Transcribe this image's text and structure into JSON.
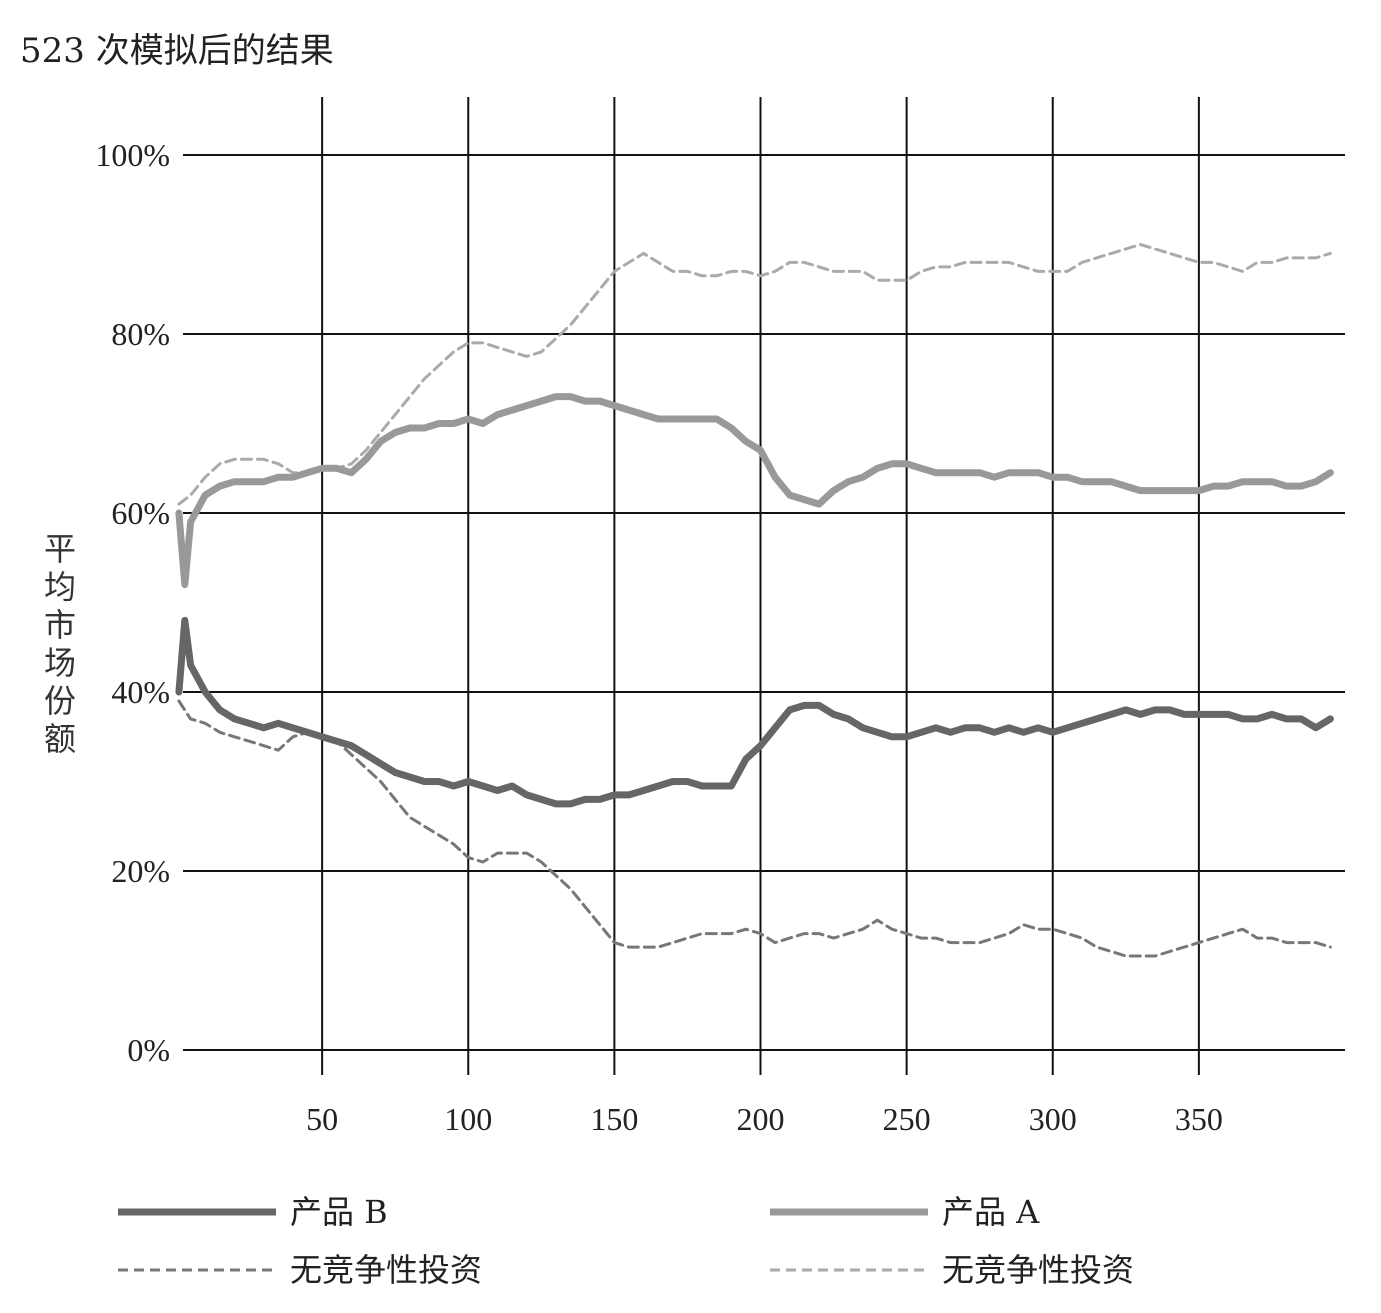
{
  "chart_data": {
    "type": "line",
    "title": "523 次模拟后的结果",
    "xlabel": "",
    "ylabel": "平均市场份额",
    "xlim": [
      0,
      400
    ],
    "ylim": [
      0,
      100
    ],
    "x_ticks": [
      50,
      100,
      150,
      200,
      250,
      300,
      350
    ],
    "x_tick_labels": [
      "50",
      "100",
      "150",
      "200",
      "250",
      "300",
      "350"
    ],
    "y_ticks": [
      0,
      20,
      40,
      60,
      80,
      100
    ],
    "y_tick_labels": [
      "0%",
      "20%",
      "40%",
      "60%",
      "80%",
      "100%"
    ],
    "grid": true,
    "legend_position": "bottom",
    "legend": [
      {
        "label": "产品 B",
        "series": 0
      },
      {
        "label": "产品 A",
        "series": 1
      },
      {
        "label": "无竞争性投资",
        "series": 2
      },
      {
        "label": "无竞争性投资",
        "series": 3
      }
    ],
    "series": [
      {
        "name": "产品 B",
        "color": "#666666",
        "style": "solid-thick",
        "x": [
          1,
          3,
          5,
          10,
          15,
          20,
          25,
          30,
          35,
          40,
          45,
          50,
          55,
          60,
          65,
          70,
          75,
          80,
          85,
          90,
          95,
          100,
          105,
          110,
          115,
          120,
          125,
          130,
          135,
          140,
          145,
          150,
          155,
          160,
          165,
          170,
          175,
          180,
          185,
          190,
          195,
          200,
          205,
          210,
          215,
          220,
          225,
          230,
          235,
          240,
          245,
          250,
          255,
          260,
          265,
          270,
          275,
          280,
          285,
          290,
          295,
          300,
          305,
          310,
          315,
          320,
          325,
          330,
          335,
          340,
          345,
          350,
          355,
          360,
          365,
          370,
          375,
          380,
          385,
          390,
          395
        ],
        "y": [
          40,
          48,
          43,
          40,
          38,
          37,
          36.5,
          36,
          36.5,
          36,
          35.5,
          35,
          34.5,
          34,
          33,
          32,
          31,
          30.5,
          30,
          30,
          29.5,
          30,
          29.5,
          29,
          29.5,
          28.5,
          28,
          27.5,
          27.5,
          28,
          28,
          28.5,
          28.5,
          29,
          29.5,
          30,
          30,
          29.5,
          29.5,
          29.5,
          32.5,
          34,
          36,
          38,
          38.5,
          38.5,
          37.5,
          37,
          36,
          35.5,
          35,
          35,
          35.5,
          36,
          35.5,
          36,
          36,
          35.5,
          36,
          35.5,
          36,
          35.5,
          36,
          36.5,
          37,
          37.5,
          38,
          37.5,
          38,
          38,
          37.5,
          37.5,
          37.5,
          37.5,
          37,
          37,
          37.5,
          37,
          37,
          36,
          37
        ]
      },
      {
        "name": "产品 A",
        "color": "#999999",
        "style": "solid-thick",
        "x": [
          1,
          3,
          5,
          10,
          15,
          20,
          25,
          30,
          35,
          40,
          45,
          50,
          55,
          60,
          65,
          70,
          75,
          80,
          85,
          90,
          95,
          100,
          105,
          110,
          115,
          120,
          125,
          130,
          135,
          140,
          145,
          150,
          155,
          160,
          165,
          170,
          175,
          180,
          185,
          190,
          195,
          200,
          205,
          210,
          215,
          220,
          225,
          230,
          235,
          240,
          245,
          250,
          255,
          260,
          265,
          270,
          275,
          280,
          285,
          290,
          295,
          300,
          305,
          310,
          315,
          320,
          325,
          330,
          335,
          340,
          345,
          350,
          355,
          360,
          365,
          370,
          375,
          380,
          385,
          390,
          395
        ],
        "y": [
          60,
          52,
          59,
          62,
          63,
          63.5,
          63.5,
          63.5,
          64,
          64,
          64.5,
          65,
          65,
          64.5,
          66,
          68,
          69,
          69.5,
          69.5,
          70,
          70,
          70.5,
          70,
          71,
          71.5,
          72,
          72.5,
          73,
          73,
          72.5,
          72.5,
          72,
          71.5,
          71,
          70.5,
          70.5,
          70.5,
          70.5,
          70.5,
          69.5,
          68,
          67,
          64,
          62,
          61.5,
          61,
          62.5,
          63.5,
          64,
          65,
          65.5,
          65.5,
          65,
          64.5,
          64.5,
          64.5,
          64.5,
          64,
          64.5,
          64.5,
          64.5,
          64,
          64,
          63.5,
          63.5,
          63.5,
          63,
          62.5,
          62.5,
          62.5,
          62.5,
          62.5,
          63,
          63,
          63.5,
          63.5,
          63.5,
          63,
          63,
          63.5,
          64.5
        ]
      },
      {
        "name": "无竞争性投资",
        "color": "#777777",
        "style": "dashed",
        "x": [
          1,
          5,
          10,
          15,
          20,
          25,
          30,
          35,
          40,
          45,
          50,
          55,
          60,
          65,
          70,
          75,
          80,
          85,
          90,
          95,
          100,
          105,
          110,
          115,
          120,
          125,
          130,
          135,
          140,
          145,
          150,
          155,
          160,
          165,
          170,
          175,
          180,
          185,
          190,
          195,
          200,
          205,
          210,
          215,
          220,
          225,
          230,
          235,
          240,
          245,
          250,
          255,
          260,
          265,
          270,
          275,
          280,
          285,
          290,
          295,
          300,
          305,
          310,
          315,
          320,
          325,
          330,
          335,
          340,
          345,
          350,
          355,
          360,
          365,
          370,
          375,
          380,
          385,
          390,
          395
        ],
        "y": [
          39,
          37,
          36.5,
          35.5,
          35,
          34.5,
          34,
          33.5,
          35,
          35.5,
          35,
          34.5,
          33,
          31.5,
          30,
          28,
          26,
          25,
          24,
          23,
          21.5,
          21,
          22,
          22,
          22,
          21,
          19.5,
          18,
          16,
          14,
          12,
          11.5,
          11.5,
          11.5,
          12,
          12.5,
          13,
          13,
          13,
          13.5,
          13,
          12,
          12.5,
          13,
          13,
          12.5,
          13,
          13.5,
          14.5,
          13.5,
          13,
          12.5,
          12.5,
          12,
          12,
          12,
          12.5,
          13,
          14,
          13.5,
          13.5,
          13,
          12.5,
          11.5,
          11,
          10.5,
          10.5,
          10.5,
          11,
          11.5,
          12,
          12.5,
          13,
          13.5,
          12.5,
          12.5,
          12,
          12,
          12,
          11.5
        ]
      },
      {
        "name": "无竞争性投资",
        "color": "#aaaaaa",
        "style": "dashed",
        "x": [
          1,
          5,
          10,
          15,
          20,
          25,
          30,
          35,
          40,
          45,
          50,
          55,
          60,
          65,
          70,
          75,
          80,
          85,
          90,
          95,
          100,
          105,
          110,
          115,
          120,
          125,
          130,
          135,
          140,
          145,
          150,
          155,
          160,
          165,
          170,
          175,
          180,
          185,
          190,
          195,
          200,
          205,
          210,
          215,
          220,
          225,
          230,
          235,
          240,
          245,
          250,
          255,
          260,
          265,
          270,
          275,
          280,
          285,
          290,
          295,
          300,
          305,
          310,
          315,
          320,
          325,
          330,
          335,
          340,
          345,
          350,
          355,
          360,
          365,
          370,
          375,
          380,
          385,
          390,
          395
        ],
        "y": [
          61,
          62,
          64,
          65.5,
          66,
          66,
          66,
          65.5,
          64.5,
          64.5,
          65,
          65,
          65.5,
          67,
          69,
          71,
          73,
          75,
          76.5,
          78,
          79,
          79,
          78.5,
          78,
          77.5,
          78,
          79.5,
          81,
          83,
          85,
          87,
          88,
          89,
          88,
          87,
          87,
          86.5,
          86.5,
          87,
          87,
          86.5,
          87,
          88,
          88,
          87.5,
          87,
          87,
          87,
          86,
          86,
          86,
          87,
          87.5,
          87.5,
          88,
          88,
          88,
          88,
          87.5,
          87,
          87,
          87,
          88,
          88.5,
          89,
          89.5,
          90,
          89.5,
          89,
          88.5,
          88,
          88,
          87.5,
          87,
          88,
          88,
          88.5,
          88.5,
          88.5,
          89
        ]
      }
    ]
  }
}
